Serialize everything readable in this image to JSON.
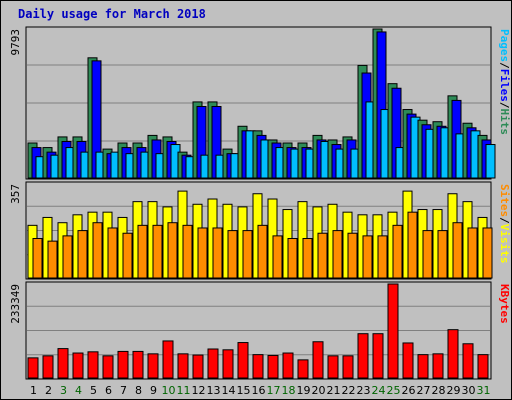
{
  "chart_data": {
    "type": "bar",
    "title": "Daily usage for March 2018",
    "categories": [
      "1",
      "2",
      "3",
      "4",
      "5",
      "6",
      "7",
      "8",
      "9",
      "10",
      "11",
      "12",
      "13",
      "14",
      "15",
      "16",
      "17",
      "18",
      "19",
      "20",
      "21",
      "22",
      "23",
      "24",
      "25",
      "26",
      "27",
      "28",
      "29",
      "30",
      "31"
    ],
    "weekend_days": [
      "3",
      "4",
      "10",
      "11",
      "17",
      "18",
      "24",
      "25",
      "31"
    ],
    "panels": [
      {
        "id": "pages-files-hits",
        "axis_label": "9793",
        "ylim": [
          0,
          9793
        ],
        "series": [
          {
            "name": "Hits",
            "color": "#2e8b57",
            "values": [
              2300,
              2000,
              2700,
              2700,
              7900,
              1900,
              2300,
              2300,
              2800,
              2700,
              1700,
              5000,
              5000,
              1900,
              3400,
              3100,
              2500,
              2300,
              2300,
              2800,
              2500,
              2700,
              7400,
              9793,
              6200,
              4500,
              3800,
              3700,
              5400,
              3600,
              2800
            ]
          },
          {
            "name": "Files",
            "color": "#0000ff",
            "values": [
              2000,
              1700,
              2400,
              2400,
              7700,
              1600,
              2000,
              2000,
              2500,
              2400,
              1500,
              4700,
              4700,
              1600,
              3100,
              2800,
              2300,
              2000,
              2000,
              2500,
              2200,
              2500,
              6900,
              9600,
              5900,
              4200,
              3500,
              3400,
              5100,
              3300,
              2500
            ]
          },
          {
            "name": "Pages",
            "color": "#00bfff",
            "values": [
              1400,
              1500,
              2000,
              1700,
              1700,
              1700,
              1600,
              1700,
              1600,
              2200,
              1400,
              1500,
              1500,
              1600,
              3100,
              2500,
              2000,
              1900,
              1900,
              2400,
              1900,
              1900,
              5000,
              4500,
              2000,
              4000,
              3200,
              3300,
              2900,
              3100,
              2200
            ]
          }
        ]
      },
      {
        "id": "visits-sites",
        "axis_label": "357",
        "ylim": [
          0,
          357
        ],
        "series": [
          {
            "name": "Visits",
            "color": "#ffff00",
            "values": [
              200,
              230,
              210,
              240,
              250,
              250,
              230,
              290,
              290,
              270,
              330,
              280,
              300,
              280,
              270,
              320,
              300,
              260,
              290,
              270,
              280,
              250,
              240,
              240,
              250,
              330,
              260,
              260,
              320,
              290,
              230
            ]
          },
          {
            "name": "Sites",
            "color": "#ff8c00",
            "values": [
              150,
              140,
              160,
              180,
              210,
              190,
              170,
              200,
              200,
              210,
              200,
              190,
              190,
              180,
              180,
              200,
              160,
              150,
              150,
              170,
              180,
              170,
              160,
              160,
              200,
              250,
              180,
              180,
              210,
              190,
              190
            ]
          }
        ]
      },
      {
        "id": "kbytes",
        "axis_label": "233349",
        "ylim": [
          0,
          233349
        ],
        "series": [
          {
            "name": "KBytes",
            "color": "#ff0000",
            "values": [
              50000,
              55000,
              73000,
              62000,
              65000,
              55000,
              66000,
              66000,
              60000,
              92000,
              60000,
              57000,
              72000,
              70000,
              88000,
              58000,
              56000,
              62000,
              45000,
              90000,
              55000,
              55000,
              110000,
              110000,
              233349,
              87000,
              58000,
              60000,
              120000,
              85000,
              58000
            ]
          }
        ]
      }
    ],
    "legend_right": [
      {
        "text": "Pages",
        "color": "#00bfff"
      },
      {
        "text": "/",
        "color": "#000000"
      },
      {
        "text": "Files",
        "color": "#0000ff"
      },
      {
        "text": "/",
        "color": "#000000"
      },
      {
        "text": "Hits",
        "color": "#2e8b57"
      },
      {
        "text": "Sites",
        "color": "#ff8c00"
      },
      {
        "text": "/",
        "color": "#000000"
      },
      {
        "text": "Visits",
        "color": "#ffff00"
      },
      {
        "text": "KBytes",
        "color": "#ff0000"
      }
    ],
    "colors": {
      "weekend_label": "#006400",
      "weekday_label": "#000000",
      "title": "#0000c0",
      "grid": "#808080"
    }
  }
}
